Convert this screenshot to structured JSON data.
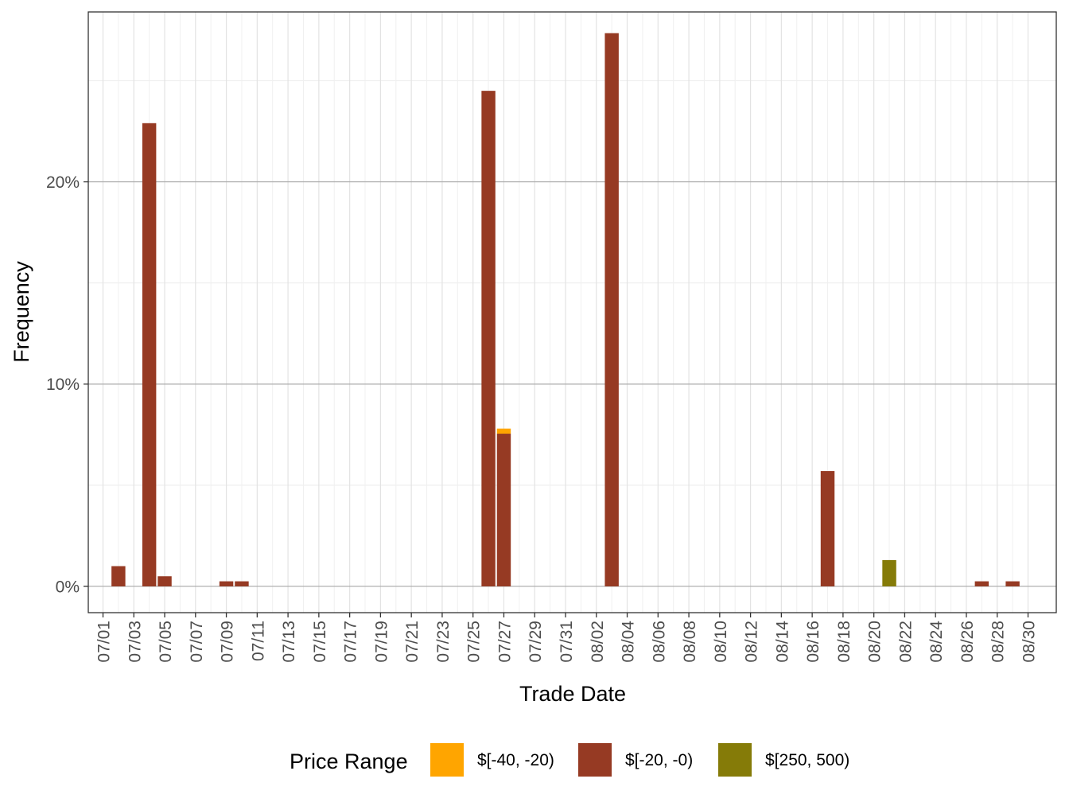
{
  "chart_data": {
    "type": "bar",
    "stacked": true,
    "xlabel": "Trade Date",
    "ylabel": "Frequency",
    "x_tick_labels": [
      "07/01",
      "07/03",
      "07/05",
      "07/07",
      "07/09",
      "07/11",
      "07/13",
      "07/15",
      "07/17",
      "07/19",
      "07/21",
      "07/23",
      "07/25",
      "07/27",
      "07/29",
      "07/31",
      "08/02",
      "08/04",
      "08/06",
      "08/08",
      "08/10",
      "08/12",
      "08/14",
      "08/16",
      "08/18",
      "08/20",
      "08/22",
      "08/24",
      "08/26",
      "08/28",
      "08/30"
    ],
    "y_ticks": [
      0,
      10,
      20
    ],
    "y_tick_labels": [
      "0%",
      "10%",
      "20%"
    ],
    "ylim": [
      -1.3,
      28.4
    ],
    "x_range": [
      "07/01",
      "08/30"
    ],
    "legend": {
      "title": "Price Range",
      "position": "bottom",
      "entries": [
        {
          "label": "$[-40, -20)",
          "color": "#FFA500"
        },
        {
          "label": "$[-20, -0)",
          "color": "#963A23"
        },
        {
          "label": "$[250, 500)",
          "color": "#857B08"
        }
      ]
    },
    "grid": true,
    "bars": [
      {
        "date": "07/02",
        "segments": [
          {
            "series": "$[-20, -0)",
            "value": 1.0
          }
        ]
      },
      {
        "date": "07/04",
        "segments": [
          {
            "series": "$[-20, -0)",
            "value": 22.9
          }
        ]
      },
      {
        "date": "07/05",
        "segments": [
          {
            "series": "$[-20, -0)",
            "value": 0.5
          }
        ]
      },
      {
        "date": "07/09",
        "segments": [
          {
            "series": "$[-20, -0)",
            "value": 0.25
          }
        ]
      },
      {
        "date": "07/10",
        "segments": [
          {
            "series": "$[-20, -0)",
            "value": 0.25
          }
        ]
      },
      {
        "date": "07/26",
        "segments": [
          {
            "series": "$[-20, -0)",
            "value": 24.5
          }
        ]
      },
      {
        "date": "07/27",
        "segments": [
          {
            "series": "$[-20, -0)",
            "value": 7.55
          },
          {
            "series": "$[-40, -20)",
            "value": 0.25
          }
        ]
      },
      {
        "date": "08/03",
        "segments": [
          {
            "series": "$[-20, -0)",
            "value": 27.35
          }
        ]
      },
      {
        "date": "08/17",
        "segments": [
          {
            "series": "$[-20, -0)",
            "value": 5.7
          }
        ]
      },
      {
        "date": "08/21",
        "segments": [
          {
            "series": "$[250, 500)",
            "value": 1.3
          }
        ]
      },
      {
        "date": "08/27",
        "segments": [
          {
            "series": "$[-20, -0)",
            "value": 0.25
          }
        ]
      },
      {
        "date": "08/29",
        "segments": [
          {
            "series": "$[-20, -0)",
            "value": 0.25
          }
        ]
      }
    ]
  }
}
